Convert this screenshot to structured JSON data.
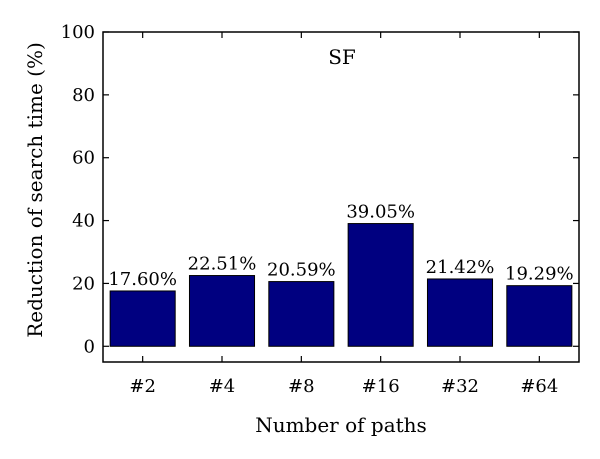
{
  "chart_data": {
    "type": "bar",
    "title": "SF",
    "xlabel": "Number of paths",
    "ylabel": "Reduction of search time (%)",
    "categories": [
      "#2",
      "#4",
      "#8",
      "#16",
      "#32",
      "#64"
    ],
    "values": [
      17.6,
      22.51,
      20.59,
      39.05,
      21.42,
      19.29
    ],
    "value_labels": [
      "17.60%",
      "22.51%",
      "20.59%",
      "39.05%",
      "21.42%",
      "19.29%"
    ],
    "ylim": [
      -5,
      100
    ],
    "yticks": [
      0,
      20,
      40,
      60,
      80,
      100
    ],
    "grid": false,
    "bar_color": "#000080"
  }
}
